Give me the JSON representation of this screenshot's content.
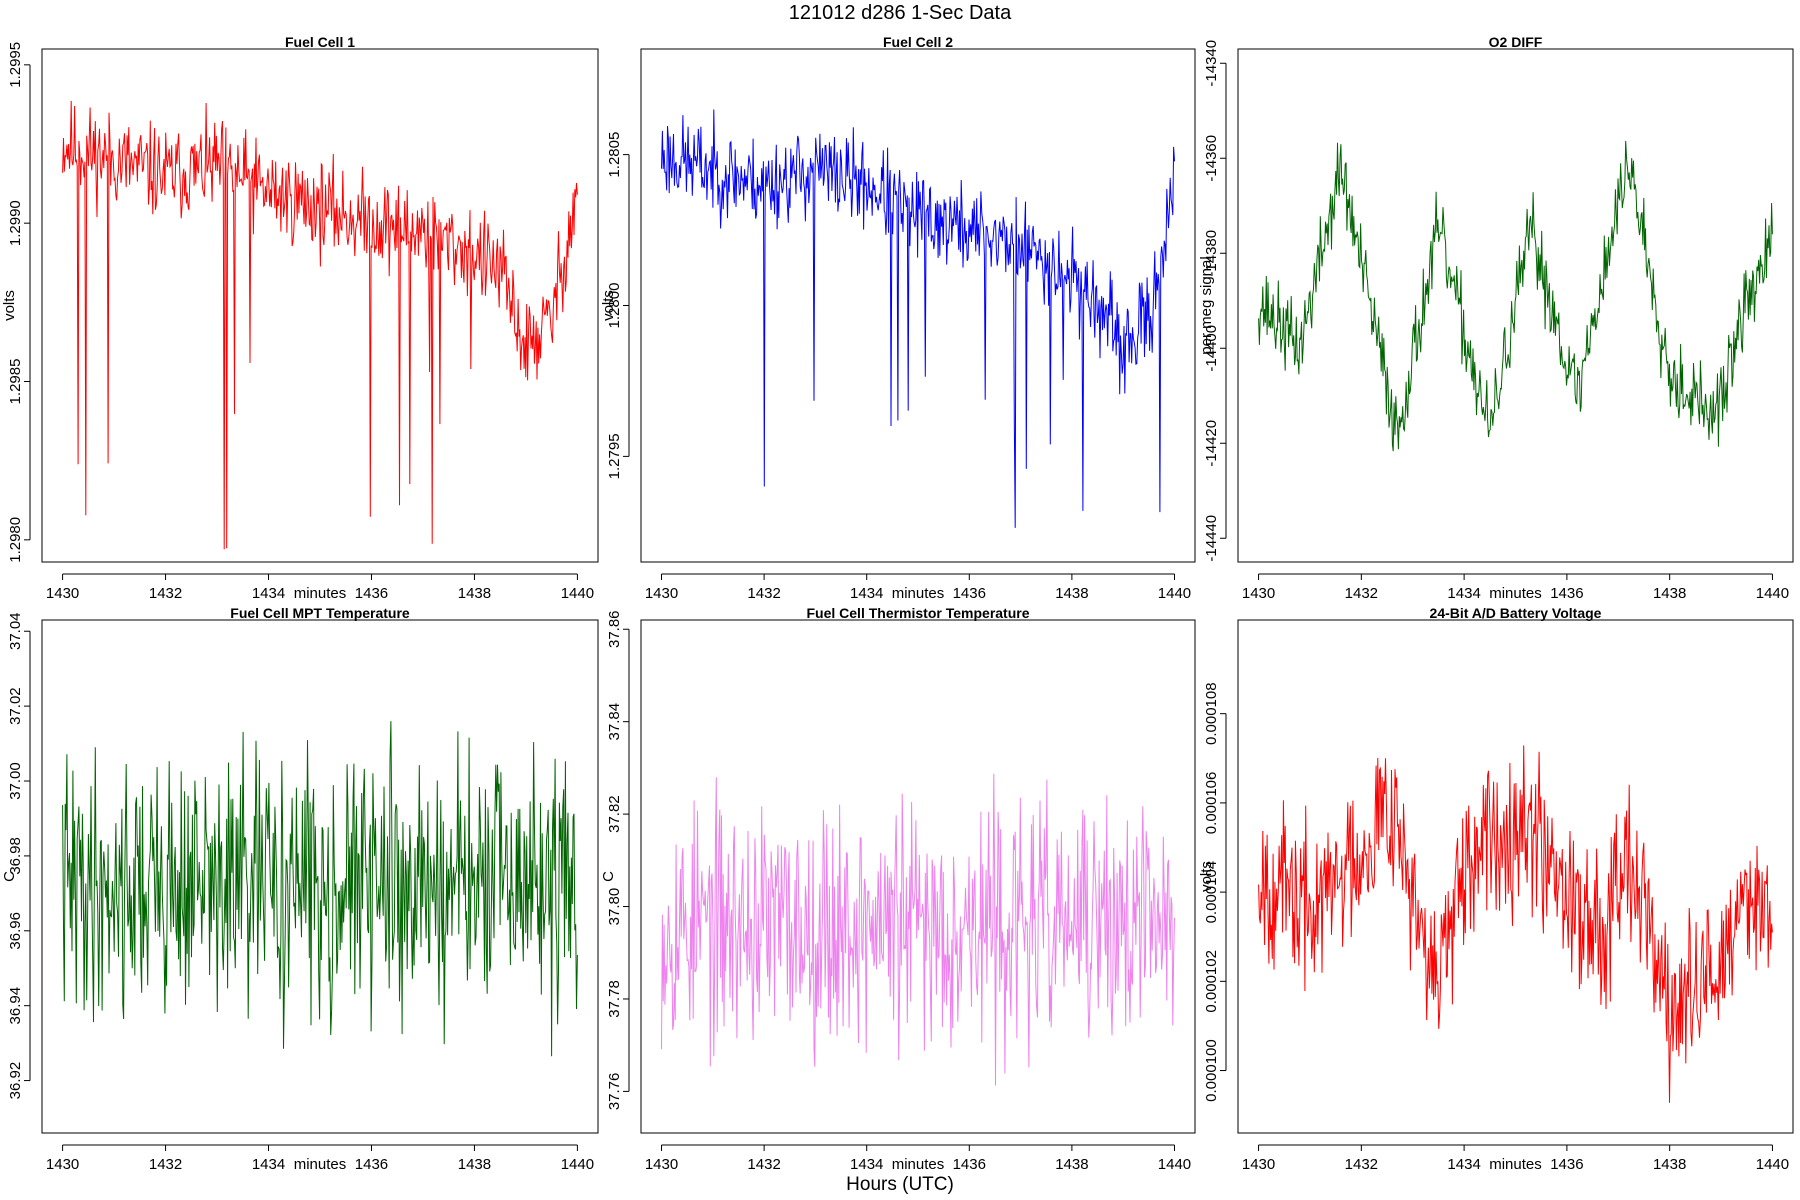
{
  "figure": {
    "title": "121012   d286   1-Sec Data",
    "xlabel": "Hours (UTC)"
  },
  "chart_data": [
    {
      "type": "line",
      "title": "Fuel Cell 1",
      "xlabel": "minutes",
      "ylabel": "volts",
      "color": "#ff0000",
      "xlim": [
        1429.6,
        1440.4
      ],
      "ylim": [
        1.29793,
        1.29955
      ],
      "xticks": [
        "1430",
        "1432",
        "1434",
        "1436",
        "1438",
        "1440"
      ],
      "yticks": [
        "1.2980",
        "1.2985",
        "1.2990",
        "1.2995"
      ],
      "x_range": [
        1430,
        1440
      ],
      "series": [
        {
          "x_start": 1430,
          "x_end": 1440,
          "points": 600,
          "anchors_x": [
            1430,
            1431,
            1432,
            1433,
            1434,
            1435,
            1436,
            1437,
            1438,
            1438.5,
            1439,
            1439.5,
            1440
          ],
          "anchors_y": [
            1.29925,
            1.2992,
            1.29915,
            1.29918,
            1.2991,
            1.29905,
            1.299,
            1.29898,
            1.2989,
            1.29885,
            1.2986,
            1.2987,
            1.2991
          ],
          "noise": 9e-05,
          "spike_count": 14,
          "spike_min": 1.29795,
          "seed": 11
        }
      ]
    },
    {
      "type": "line",
      "title": "Fuel Cell 2",
      "xlabel": "minutes",
      "ylabel": "volts",
      "color": "#0000ff",
      "xlim": [
        1429.6,
        1440.4
      ],
      "ylim": [
        1.27915,
        1.28085
      ],
      "xticks": [
        "1430",
        "1432",
        "1434",
        "1436",
        "1438",
        "1440"
      ],
      "yticks": [
        "1.2795",
        "1.2800",
        "1.2805"
      ],
      "x_range": [
        1430,
        1440
      ],
      "series": [
        {
          "x_start": 1430,
          "x_end": 1440,
          "points": 600,
          "anchors_x": [
            1430,
            1431,
            1432,
            1433,
            1434,
            1435,
            1436,
            1437,
            1438,
            1438.5,
            1439,
            1439.5,
            1440
          ],
          "anchors_y": [
            1.2805,
            1.28045,
            1.2804,
            1.28045,
            1.2804,
            1.2803,
            1.28025,
            1.2802,
            1.2801,
            1.28,
            1.27985,
            1.27995,
            1.2804
          ],
          "noise": 9e-05,
          "spike_count": 14,
          "spike_min": 1.27925,
          "seed": 23
        }
      ]
    },
    {
      "type": "line",
      "title": "O2 DIFF",
      "xlabel": "minutes",
      "ylabel": "per meg signal",
      "color": "#006400",
      "xlim": [
        1429.6,
        1440.4
      ],
      "ylim": [
        -14445,
        -14337
      ],
      "xticks": [
        "1430",
        "1432",
        "1434",
        "1436",
        "1438",
        "1440"
      ],
      "yticks": [
        "-14440",
        "-14420",
        "-14400",
        "-14380",
        "-14360",
        "-14340"
      ],
      "x_range": [
        1430,
        1440
      ],
      "series": [
        {
          "x_start": 1430,
          "x_end": 1440,
          "points": 600,
          "anchors_x": [
            1430,
            1430.8,
            1431.6,
            1432.7,
            1433.5,
            1434.5,
            1435.3,
            1436.2,
            1437.2,
            1438.0,
            1438.9,
            1439.5,
            1440
          ],
          "anchors_y": [
            -14390,
            -14400,
            -14362,
            -14418,
            -14375,
            -14418,
            -14375,
            -14410,
            -14360,
            -14405,
            -14415,
            -14390,
            -14378
          ],
          "noise": 5,
          "spike_count": 0,
          "spike_min": 0,
          "seed": 37
        }
      ]
    },
    {
      "type": "line",
      "title": "Fuel Cell MPT Temperature",
      "xlabel": "minutes",
      "ylabel": "C",
      "color": "#006400",
      "xlim": [
        1429.6,
        1440.4
      ],
      "ylim": [
        36.906,
        37.043
      ],
      "xticks": [
        "1430",
        "1432",
        "1434",
        "1436",
        "1438",
        "1440"
      ],
      "yticks": [
        "36.92",
        "36.94",
        "36.96",
        "36.98",
        "37.00",
        "37.02",
        "37.04"
      ],
      "x_range": [
        1430,
        1440
      ],
      "series": [
        {
          "x_start": 1430,
          "x_end": 1440,
          "points": 600,
          "anchors_x": [
            1430,
            1440
          ],
          "anchors_y": [
            36.972,
            36.972
          ],
          "noise": 0.021,
          "spike_count": 0,
          "spike_min": 0,
          "seed": 41
        }
      ]
    },
    {
      "type": "line",
      "title": "Fuel Cell Thermistor Temperature",
      "xlabel": "minutes",
      "ylabel": "C",
      "color": "#ee82ee",
      "xlim": [
        1429.6,
        1440.4
      ],
      "ylim": [
        37.751,
        37.862
      ],
      "xticks": [
        "1430",
        "1432",
        "1434",
        "1436",
        "1438",
        "1440"
      ],
      "yticks": [
        "37.76",
        "37.78",
        "37.80",
        "37.82",
        "37.84",
        "37.86"
      ],
      "x_range": [
        1430,
        1440
      ],
      "series": [
        {
          "x_start": 1430,
          "x_end": 1440,
          "points": 600,
          "anchors_x": [
            1430,
            1440
          ],
          "anchors_y": [
            37.796,
            37.796
          ],
          "noise": 0.016,
          "spike_count": 0,
          "spike_min": 0,
          "seed": 53
        }
      ]
    },
    {
      "type": "line",
      "title": "24-Bit A/D Battery Voltage",
      "xlabel": "minutes",
      "ylabel": "volts",
      "color": "#ff0000",
      "xlim": [
        1429.6,
        1440.4
      ],
      "ylim": [
        9.86e-05,
        0.0001101
      ],
      "xticks": [
        "1430",
        "1432",
        "1434",
        "1436",
        "1438",
        "1440"
      ],
      "yticks": [
        "0.000100",
        "0.000102",
        "0.000104",
        "0.000106",
        "0.000108"
      ],
      "x_range": [
        1430,
        1440
      ],
      "series": [
        {
          "x_start": 1430,
          "x_end": 1440,
          "points": 600,
          "anchors_x": [
            1430,
            1431,
            1432,
            1432.6,
            1433.3,
            1434.4,
            1435.0,
            1435.6,
            1436.6,
            1437.2,
            1438.0,
            1438.6,
            1439.2,
            1439.6,
            1440
          ],
          "anchors_y": [
            0.0001045,
            0.0001035,
            0.000105,
            0.0001062,
            0.000102,
            0.000105,
            0.0001058,
            0.000105,
            0.000103,
            0.0001052,
            0.0001012,
            0.0001018,
            0.0001028,
            0.0001042,
            0.0001035
          ],
          "noise": 1.1e-06,
          "spike_count": 0,
          "spike_min": 0,
          "seed": 67
        }
      ]
    }
  ]
}
